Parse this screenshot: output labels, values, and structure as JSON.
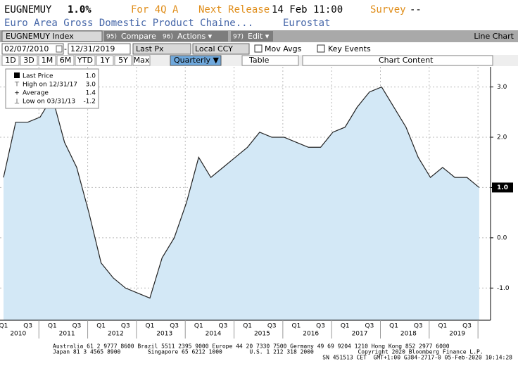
{
  "header": {
    "ticker": "EUGNEMUY",
    "value": "1.0%",
    "period": "For 4Q A",
    "next_release_label": "Next Release",
    "next_release": "14 Feb 11:00",
    "survey_label": "Survey",
    "survey": "--",
    "description": "Euro Area Gross Domestic Product Chaine...",
    "source": "Eurostat"
  },
  "toolbar": {
    "security": "EUGNEMUY Index",
    "buttons": [
      {
        "num": "95)",
        "label": "Compare"
      },
      {
        "num": "96)",
        "label": "Actions ▾"
      },
      {
        "num": "97)",
        "label": "Edit ▾"
      }
    ],
    "view": "Line Chart",
    "start": "02/07/2010",
    "end": "12/31/2019",
    "field": "Last Px",
    "currency": "Local CCY",
    "mov_avgs": "Mov Avgs",
    "key_events": "Key Events",
    "periods": [
      "1D",
      "3D",
      "1M",
      "6M",
      "YTD",
      "1Y",
      "5Y",
      "Max"
    ],
    "frequency": "Quarterly ▼",
    "table": "Table",
    "chart_content": "Chart Content"
  },
  "chart_data": {
    "type": "line",
    "categories": [
      "Q1",
      null,
      "Q3",
      null,
      "Q1",
      null,
      "Q3",
      null,
      "Q1",
      null,
      "Q3",
      null,
      "Q1",
      null,
      "Q3",
      null,
      "Q1",
      null,
      "Q3",
      null,
      "Q1",
      null,
      "Q3",
      null,
      "Q1",
      null,
      "Q3",
      null,
      "Q1",
      null,
      "Q3",
      null,
      "Q1",
      null,
      "Q3",
      null,
      "Q1",
      null,
      "Q3",
      null
    ],
    "years": [
      "2010",
      "2011",
      "2012",
      "2013",
      "2014",
      "2015",
      "2016",
      "2017",
      "2018",
      "2019"
    ],
    "series": [
      {
        "name": "Last Price",
        "color": "#222222",
        "fill": "#d3e8f6",
        "values": [
          1.2,
          2.3,
          2.3,
          2.4,
          2.8,
          1.9,
          1.4,
          0.5,
          -0.5,
          -0.8,
          -1.0,
          -1.1,
          -1.2,
          -0.4,
          0.0,
          0.7,
          1.6,
          1.2,
          1.4,
          1.6,
          1.8,
          2.1,
          2.0,
          2.0,
          1.9,
          1.8,
          1.8,
          2.1,
          2.2,
          2.6,
          2.9,
          3.0,
          2.6,
          2.2,
          1.6,
          1.2,
          1.4,
          1.2,
          1.2,
          1.0
        ]
      }
    ],
    "last_label": {
      "value": 1.0,
      "label": "1.0"
    },
    "legend": [
      {
        "label": "High on 12/31/17",
        "value": {
          "value": 3.0,
          "label": "3.0"
        }
      },
      {
        "label": "Average",
        "value": {
          "value": 1.4,
          "label": "1.4"
        }
      },
      {
        "label": "Low on 03/31/13",
        "value": {
          "value": -1.2,
          "label": "-1.2"
        }
      }
    ],
    "ylim": [
      -1.64,
      3.4
    ],
    "yticks": [
      {
        "value": -1,
        "label": "-1.0"
      },
      {
        "value": 0,
        "label": "0.0"
      },
      {
        "value": 1,
        "label": "1.0"
      },
      {
        "value": 2,
        "label": "2.0"
      },
      {
        "value": 3,
        "label": "3.0"
      }
    ],
    "grid": true
  },
  "footer": [
    "Australia 61 2 9777 8600 Brazil 5511 2395 9000 Europe 44 20 7330 7500 Germany 49 69 9204 1210 Hong Kong 852 2977 6000",
    "Japan 81 3 4565 8900        Singapore 65 6212 1000        U.S. 1 212 318 2000             Copyright 2020 Bloomberg Finance L.P.",
    "SN 451513 CET  GMT+1:00 G384-2717-0 05-Feb-2020 10:14:28"
  ]
}
